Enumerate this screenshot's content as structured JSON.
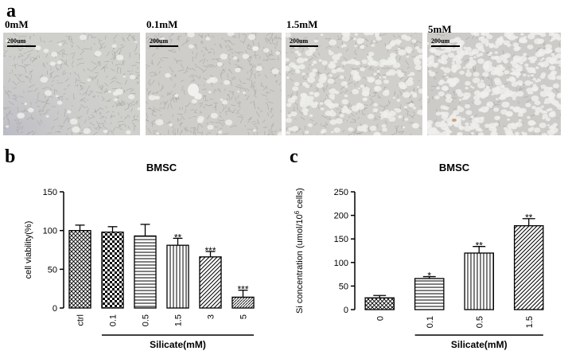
{
  "panel_letters": {
    "a": "a",
    "b": "b",
    "c": "c"
  },
  "micrographs": [
    {
      "label": "0mM",
      "scale_bar": "200um",
      "cell_density": "confluent"
    },
    {
      "label": "0.1mM",
      "scale_bar": "200um",
      "cell_density": "confluent"
    },
    {
      "label": "1.5mM",
      "scale_bar": "200um",
      "cell_density": "reduced"
    },
    {
      "label": "5mM",
      "scale_bar": "200um",
      "cell_density": "sparse"
    }
  ],
  "colors": {
    "bar_stroke": "#000000",
    "micrograph_bg": "#cdcdca",
    "text": "#000000"
  },
  "chart_data": [
    {
      "type": "bar",
      "title": "BMSC",
      "ylabel": "cell viability(%)",
      "xlabel": "Silicate(mM)",
      "ylim": [
        0,
        150
      ],
      "yticks": [
        0,
        50,
        100,
        150
      ],
      "grid": false,
      "categories": [
        "ctrl",
        "0.1",
        "0.5",
        "1.5",
        "3",
        "5"
      ],
      "values": [
        100,
        98,
        93,
        81,
        66,
        14
      ],
      "errors": [
        7,
        7,
        15,
        9,
        7,
        9
      ],
      "significance": [
        "",
        "",
        "",
        "**",
        "***",
        "***"
      ],
      "patterns": [
        "crosshatch",
        "checker",
        "hlines",
        "vlines",
        "diag",
        "diag-dense"
      ]
    },
    {
      "type": "bar",
      "title": "BMSC",
      "ylabel": "Si concentration (umol/10^6 cells)",
      "ylabel_parts": [
        "Si concentration (umol/10",
        "6",
        " cells)"
      ],
      "xlabel": "Silicate(mM)",
      "ylim": [
        0,
        250
      ],
      "yticks": [
        0,
        50,
        100,
        150,
        200,
        250
      ],
      "grid": false,
      "categories": [
        "0",
        "0.1",
        "0.5",
        "1.5"
      ],
      "values": [
        25,
        66,
        120,
        178
      ],
      "errors": [
        5,
        4,
        14,
        15
      ],
      "significance": [
        "",
        "*",
        "**",
        "**"
      ],
      "patterns": [
        "crosshatch",
        "hlines",
        "vlines",
        "diag"
      ]
    }
  ]
}
